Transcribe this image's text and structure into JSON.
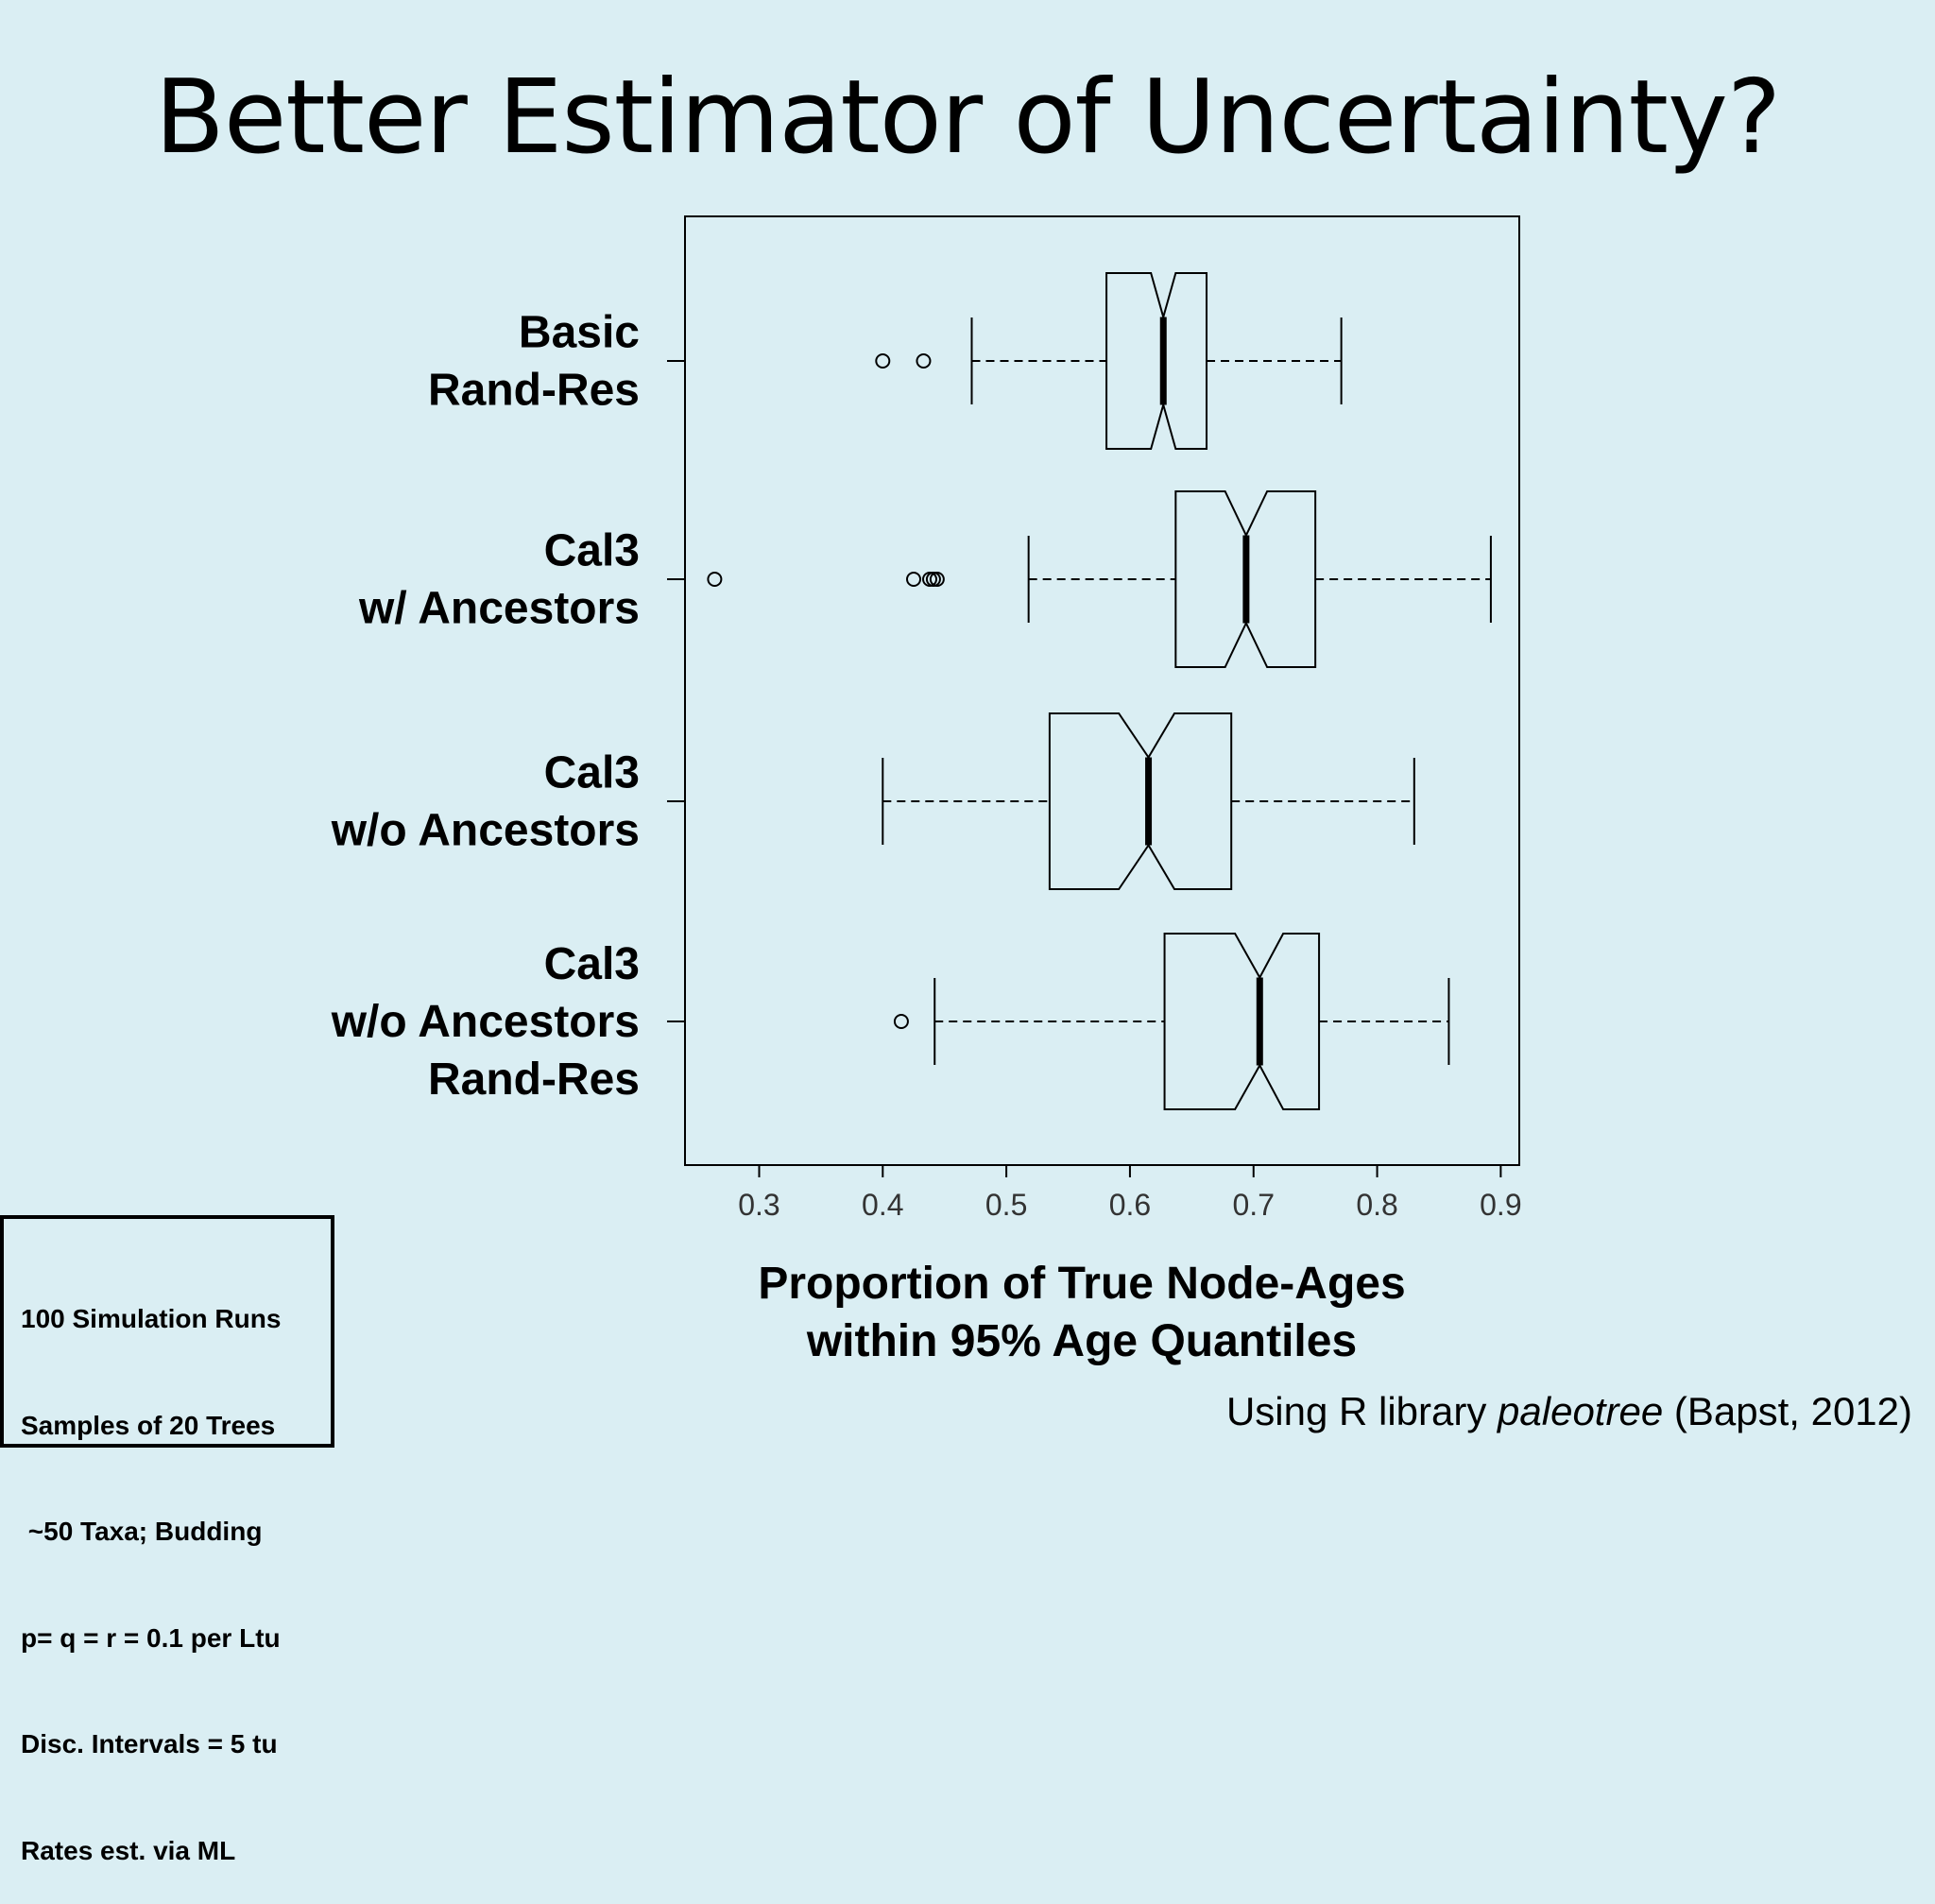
{
  "title": "Better Estimator of Uncertainty?",
  "chart_data": {
    "type": "boxplot",
    "orientation": "horizontal",
    "notched": true,
    "xlim": [
      0.24,
      0.915
    ],
    "xticks": [
      "0.3",
      "0.4",
      "0.5",
      "0.6",
      "0.7",
      "0.8",
      "0.9"
    ],
    "xlabel_lines": [
      "Proportion of True Node-Ages",
      "within 95% Age Quantiles"
    ],
    "series": [
      {
        "label_lines": [
          "Basic",
          "Rand-Res"
        ],
        "whisker_low": 0.472,
        "q1": 0.581,
        "median": 0.627,
        "q3": 0.662,
        "whisker_high": 0.771,
        "notch_low": 0.617,
        "notch_high": 0.637,
        "outliers": [
          0.4,
          0.433
        ]
      },
      {
        "label_lines": [
          "Cal3",
          "w/ Ancestors"
        ],
        "whisker_low": 0.518,
        "q1": 0.637,
        "median": 0.694,
        "q3": 0.75,
        "whisker_high": 0.892,
        "notch_low": 0.677,
        "notch_high": 0.711,
        "outliers": [
          0.264,
          0.425,
          0.438,
          0.441,
          0.444
        ]
      },
      {
        "label_lines": [
          "Cal3",
          "w/o Ancestors"
        ],
        "whisker_low": 0.4,
        "q1": 0.535,
        "median": 0.615,
        "q3": 0.682,
        "whisker_high": 0.83,
        "notch_low": 0.591,
        "notch_high": 0.636,
        "outliers": []
      },
      {
        "label_lines": [
          "Cal3",
          "w/o Ancestors",
          "Rand-Res"
        ],
        "whisker_low": 0.442,
        "q1": 0.628,
        "median": 0.705,
        "q3": 0.753,
        "whisker_high": 0.858,
        "notch_low": 0.685,
        "notch_high": 0.724,
        "outliers": [
          0.415
        ]
      }
    ]
  },
  "notes": {
    "line1": "100 Simulation Runs",
    "line2": "Samples of 20 Trees",
    "line3": " ~50 Taxa; Budding",
    "line4": "p= q = r = 0.1 per Ltu",
    "line5": "Disc. Intervals = 5 tu",
    "line6": "Rates est. via ML"
  },
  "citation": {
    "prefix": "Using R library ",
    "italic": "paleotree",
    "suffix": " (Bapst, 2012)"
  }
}
